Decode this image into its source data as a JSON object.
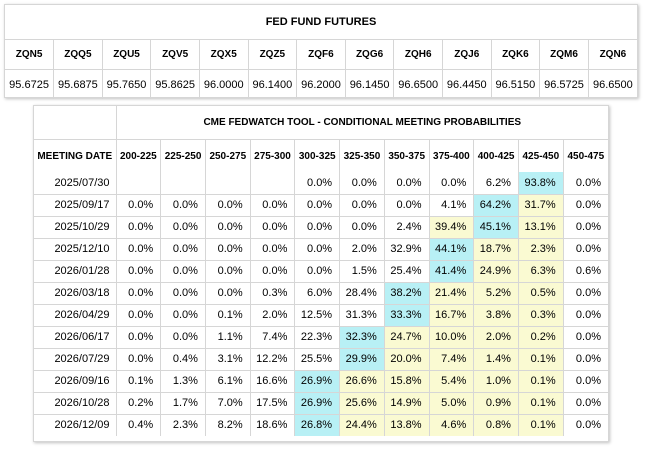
{
  "futures": {
    "title": "FED FUND FUTURES",
    "contracts": [
      "ZQN5",
      "ZQQ5",
      "ZQU5",
      "ZQV5",
      "ZQX5",
      "ZQZ5",
      "ZQF6",
      "ZQG6",
      "ZQH6",
      "ZQJ6",
      "ZQK6",
      "ZQM6",
      "ZQN6"
    ],
    "prices": [
      "95.6725",
      "95.6875",
      "95.7650",
      "95.8625",
      "96.0000",
      "96.1400",
      "96.2000",
      "96.1450",
      "96.6500",
      "96.4450",
      "96.5150",
      "96.5725",
      "96.6500"
    ]
  },
  "fedwatch": {
    "title": "CME FEDWATCH TOOL - CONDITIONAL MEETING PROBABILITIES",
    "date_header": "MEETING DATE",
    "ranges": [
      "200-225",
      "225-250",
      "250-275",
      "275-300",
      "300-325",
      "325-350",
      "350-375",
      "375-400",
      "400-425",
      "425-450",
      "450-475"
    ],
    "colors": {
      "max": "#b8f0f5",
      "second": "#fafad2"
    },
    "rows": [
      {
        "date": "2025/07/30",
        "values": [
          "",
          "",
          "",
          "",
          "0.0%",
          "0.0%",
          "0.0%",
          "0.0%",
          "6.2%",
          "93.8%",
          "0.0%"
        ],
        "hl": {
          "9": "c"
        }
      },
      {
        "date": "2025/09/17",
        "values": [
          "0.0%",
          "0.0%",
          "0.0%",
          "0.0%",
          "0.0%",
          "0.0%",
          "0.0%",
          "4.1%",
          "64.2%",
          "31.7%",
          "0.0%"
        ],
        "hl": {
          "8": "c",
          "9": "y"
        }
      },
      {
        "date": "2025/10/29",
        "values": [
          "0.0%",
          "0.0%",
          "0.0%",
          "0.0%",
          "0.0%",
          "0.0%",
          "2.4%",
          "39.4%",
          "45.1%",
          "13.1%",
          "0.0%"
        ],
        "hl": {
          "7": "y",
          "8": "c",
          "9": "y"
        }
      },
      {
        "date": "2025/12/10",
        "values": [
          "0.0%",
          "0.0%",
          "0.0%",
          "0.0%",
          "0.0%",
          "2.0%",
          "32.9%",
          "44.1%",
          "18.7%",
          "2.3%",
          "0.0%"
        ],
        "hl": {
          "7": "c",
          "8": "y",
          "9": "y"
        }
      },
      {
        "date": "2026/01/28",
        "values": [
          "0.0%",
          "0.0%",
          "0.0%",
          "0.0%",
          "0.0%",
          "1.5%",
          "25.4%",
          "41.4%",
          "24.9%",
          "6.3%",
          "0.6%"
        ],
        "hl": {
          "7": "c",
          "8": "y",
          "9": "y"
        }
      },
      {
        "date": "2026/03/18",
        "values": [
          "0.0%",
          "0.0%",
          "0.0%",
          "0.3%",
          "6.0%",
          "28.4%",
          "38.2%",
          "21.4%",
          "5.2%",
          "0.5%",
          "0.0%"
        ],
        "hl": {
          "6": "c",
          "7": "y",
          "8": "y",
          "9": "y"
        }
      },
      {
        "date": "2026/04/29",
        "values": [
          "0.0%",
          "0.0%",
          "0.1%",
          "2.0%",
          "12.5%",
          "31.3%",
          "33.3%",
          "16.7%",
          "3.8%",
          "0.3%",
          "0.0%"
        ],
        "hl": {
          "6": "c",
          "7": "y",
          "8": "y",
          "9": "y"
        }
      },
      {
        "date": "2026/06/17",
        "values": [
          "0.0%",
          "0.0%",
          "1.1%",
          "7.4%",
          "22.3%",
          "32.3%",
          "24.7%",
          "10.0%",
          "2.0%",
          "0.2%",
          "0.0%"
        ],
        "hl": {
          "5": "c",
          "6": "y",
          "7": "y",
          "8": "y",
          "9": "y"
        }
      },
      {
        "date": "2026/07/29",
        "values": [
          "0.0%",
          "0.4%",
          "3.1%",
          "12.2%",
          "25.5%",
          "29.9%",
          "20.0%",
          "7.4%",
          "1.4%",
          "0.1%",
          "0.0%"
        ],
        "hl": {
          "5": "c",
          "6": "y",
          "7": "y",
          "8": "y",
          "9": "y"
        }
      },
      {
        "date": "2026/09/16",
        "values": [
          "0.1%",
          "1.3%",
          "6.1%",
          "16.6%",
          "26.9%",
          "26.6%",
          "15.8%",
          "5.4%",
          "1.0%",
          "0.1%",
          "0.0%"
        ],
        "hl": {
          "4": "c",
          "5": "y",
          "6": "y",
          "7": "y",
          "8": "y",
          "9": "y"
        }
      },
      {
        "date": "2026/10/28",
        "values": [
          "0.2%",
          "1.7%",
          "7.0%",
          "17.5%",
          "26.9%",
          "25.6%",
          "14.9%",
          "5.0%",
          "0.9%",
          "0.1%",
          "0.0%"
        ],
        "hl": {
          "4": "c",
          "5": "y",
          "6": "y",
          "7": "y",
          "8": "y",
          "9": "y"
        }
      },
      {
        "date": "2026/12/09",
        "values": [
          "0.4%",
          "2.3%",
          "8.2%",
          "18.6%",
          "26.8%",
          "24.4%",
          "13.8%",
          "4.6%",
          "0.8%",
          "0.1%",
          "0.0%"
        ],
        "hl": {
          "4": "c",
          "5": "y",
          "6": "y",
          "7": "y",
          "8": "y",
          "9": "y"
        }
      }
    ]
  }
}
